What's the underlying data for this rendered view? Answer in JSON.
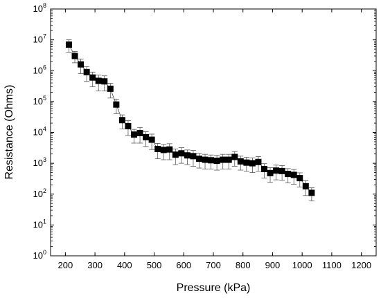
{
  "chart_data": {
    "type": "scatter",
    "xlabel": "Pressure (kPa)",
    "ylabel": "Resistance (Ohms)",
    "xlim": [
      150,
      1250
    ],
    "ylim": [
      1,
      100000000
    ],
    "yscale": "log",
    "grid": false,
    "x_ticks": [
      200,
      300,
      400,
      500,
      600,
      700,
      800,
      900,
      1000,
      1100,
      1200
    ],
    "x_tick_labels": [
      "200",
      "300",
      "400",
      "500",
      "600",
      "700",
      "800",
      "900",
      "1000",
      "1100",
      "1200"
    ],
    "y_tick_exponents": [
      0,
      1,
      2,
      3,
      4,
      5,
      6,
      7,
      8
    ],
    "y_tick_base": "10",
    "marker": "filled-square",
    "error_bars": "downward",
    "series": [
      {
        "x": [
          212,
          232,
          252,
          272,
          292,
          312,
          332,
          352,
          372,
          392,
          412,
          432,
          452,
          472,
          492,
          512,
          532,
          552,
          572,
          592,
          612,
          632,
          652,
          672,
          692,
          712,
          732,
          752,
          772,
          792,
          812,
          832,
          852,
          872,
          892,
          912,
          932,
          952,
          972,
          992,
          1012,
          1032
        ],
        "y": [
          7000000,
          3000000,
          1600000,
          900000,
          600000,
          470000,
          450000,
          260000,
          80000,
          25000,
          16000,
          8500,
          9500,
          7000,
          5800,
          2900,
          2700,
          2800,
          1900,
          2100,
          1800,
          1700,
          1400,
          1300,
          1250,
          1200,
          1300,
          1300,
          1600,
          1150,
          1050,
          1000,
          1100,
          650,
          480,
          580,
          560,
          450,
          420,
          330,
          180,
          110
        ],
        "err_low": [
          3000000,
          1200000,
          800000,
          450000,
          300000,
          250000,
          230000,
          130000,
          40000,
          12000,
          8000,
          4000,
          5000,
          3500,
          3000,
          1500,
          1400,
          1500,
          1000,
          1100,
          900,
          900,
          700,
          650,
          600,
          600,
          650,
          650,
          800,
          550,
          500,
          500,
          550,
          320,
          240,
          290,
          280,
          220,
          210,
          160,
          90,
          50
        ]
      }
    ]
  }
}
